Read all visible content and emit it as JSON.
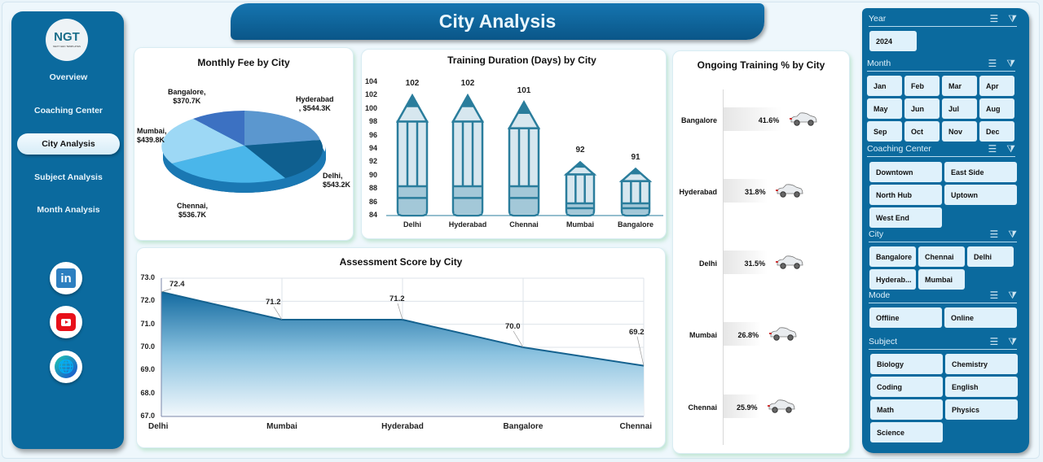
{
  "title": "City Analysis",
  "logo": {
    "text": "NGT",
    "subtext": "NEXT GEN TEMPLATES"
  },
  "nav": {
    "items": [
      {
        "label": "Overview",
        "active": false
      },
      {
        "label": "Coaching Center",
        "active": false
      },
      {
        "label": "City Analysis",
        "active": true
      },
      {
        "label": "Subject Analysis",
        "active": false
      },
      {
        "label": "Month Analysis",
        "active": false
      }
    ],
    "social": [
      "linkedin-icon",
      "youtube-icon",
      "globe-icon"
    ]
  },
  "colors": {
    "primary": "#0b6a9e",
    "chip": "#dff1fb",
    "pencil": "#2a7d9c",
    "area_top": "#1a6fa0"
  },
  "slicers": {
    "year": {
      "label": "Year",
      "items": [
        "2024"
      ]
    },
    "month": {
      "label": "Month",
      "items": [
        "Jan",
        "Feb",
        "Mar",
        "Apr",
        "May",
        "Jun",
        "Jul",
        "Aug",
        "Sep",
        "Oct",
        "Nov",
        "Dec"
      ]
    },
    "center": {
      "label": "Coaching Center",
      "items": [
        "Downtown",
        "East Side",
        "North Hub",
        "Uptown",
        "West End"
      ]
    },
    "city": {
      "label": "City",
      "items": [
        "Bangalore",
        "Chennai",
        "Delhi",
        "Hyderab...",
        "Mumbai"
      ]
    },
    "mode": {
      "label": "Mode",
      "items": [
        "Offline",
        "Online"
      ]
    },
    "subject": {
      "label": "Subject",
      "items": [
        "Biology",
        "Chemistry",
        "Coding",
        "English",
        "Math",
        "Physics",
        "Science"
      ]
    }
  },
  "chart_data": [
    {
      "type": "pie",
      "title": "Monthly Fee by City",
      "categories": [
        "Hyderabad",
        "Delhi",
        "Chennai",
        "Mumbai",
        "Bangalore"
      ],
      "values": [
        544.3,
        543.2,
        536.7,
        439.8,
        370.7
      ],
      "labels": [
        "Hyderabad, $544.3K",
        "Delhi, $543.2K",
        "Chennai, $536.7K",
        "Mumbai, $439.8K",
        "Bangalore, $370.7K"
      ],
      "unit": "$K"
    },
    {
      "type": "bar",
      "title": "Training Duration (Days) by City",
      "categories": [
        "Delhi",
        "Hyderabad",
        "Chennai",
        "Mumbai",
        "Bangalore"
      ],
      "values": [
        102,
        102,
        101,
        92,
        91
      ],
      "ylim": [
        84,
        104
      ],
      "yticks": [
        84,
        86,
        88,
        90,
        92,
        94,
        96,
        98,
        100,
        102,
        104
      ]
    },
    {
      "type": "bar",
      "orientation": "horizontal",
      "title": "Ongoing Training % by City",
      "categories": [
        "Bangalore",
        "Hyderabad",
        "Delhi",
        "Mumbai",
        "Chennai"
      ],
      "values": [
        41.6,
        31.8,
        31.5,
        26.8,
        25.9
      ],
      "labels": [
        "41.6%",
        "31.8%",
        "31.5%",
        "26.8%",
        "25.9%"
      ]
    },
    {
      "type": "area",
      "title": "Assessment Score by City",
      "categories": [
        "Delhi",
        "Mumbai",
        "Hyderabad",
        "Bangalore",
        "Chennai"
      ],
      "values": [
        72.4,
        71.2,
        71.2,
        70.0,
        69.2
      ],
      "ylim": [
        67.0,
        73.0
      ],
      "yticks": [
        "67.0",
        "68.0",
        "69.0",
        "70.0",
        "71.0",
        "72.0",
        "73.0"
      ],
      "grid": true
    }
  ]
}
